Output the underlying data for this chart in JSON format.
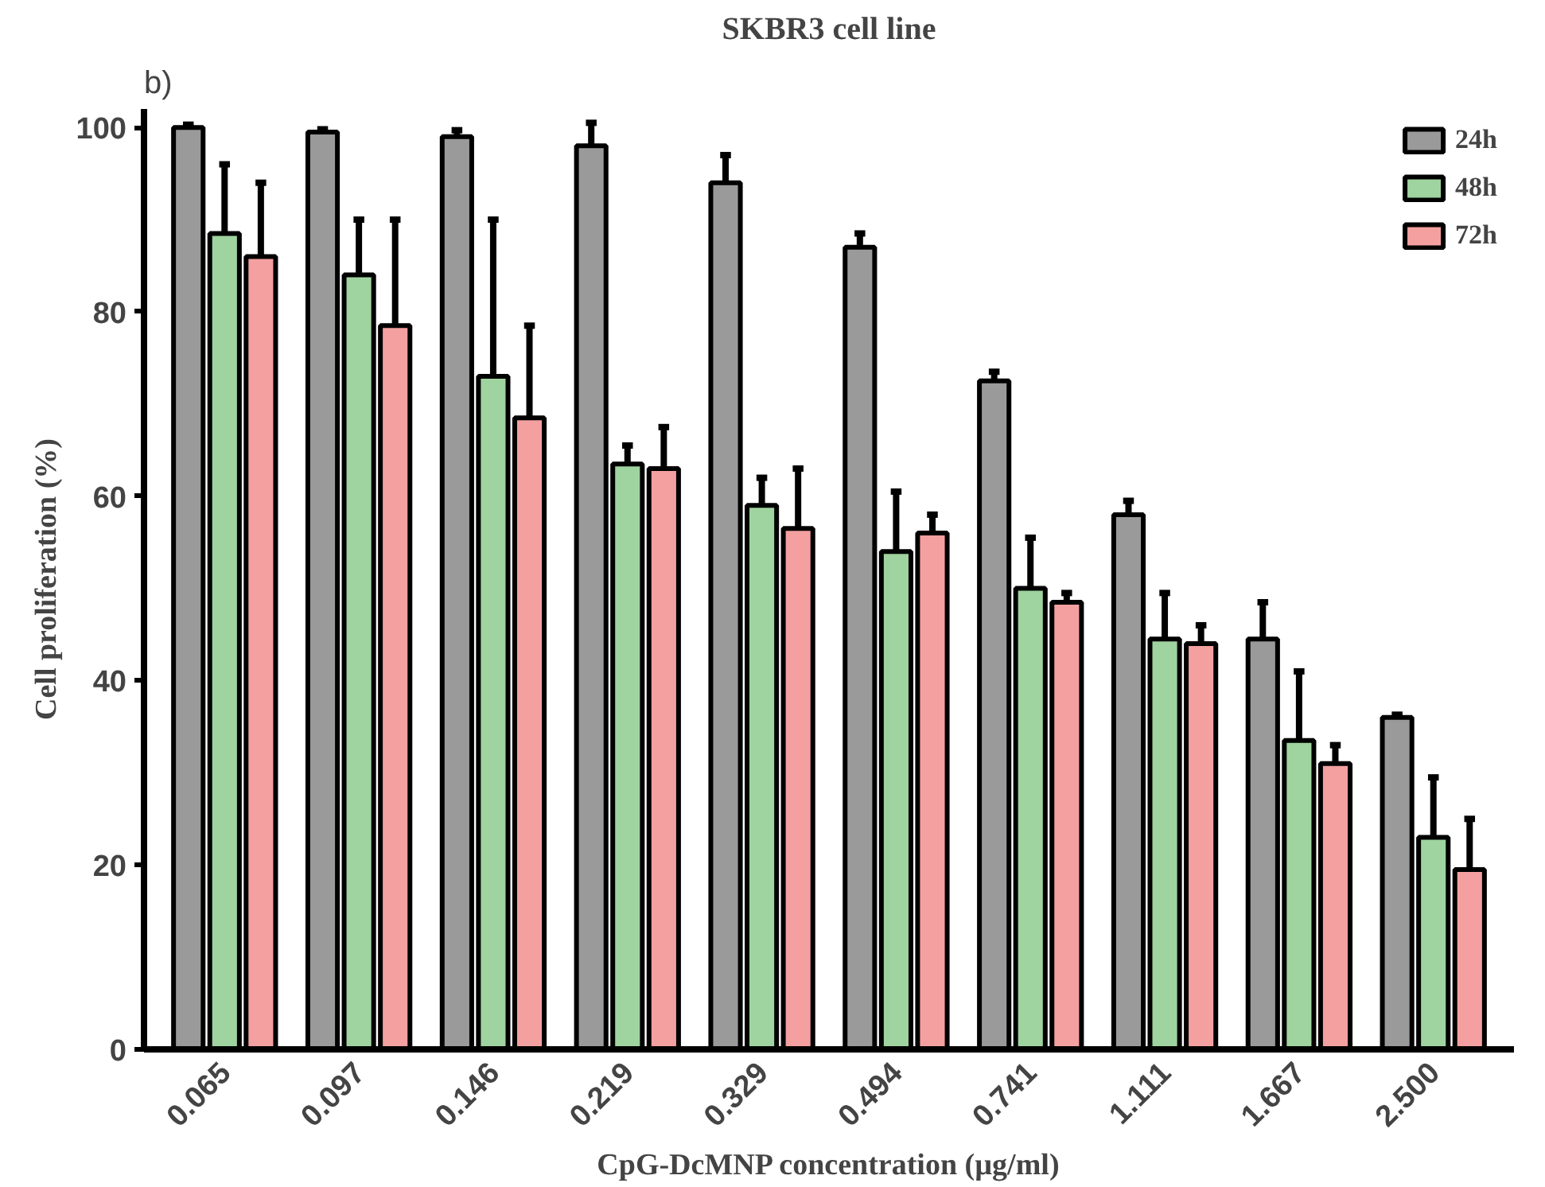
{
  "chart_data": {
    "type": "bar",
    "title": "SKBR3 cell line",
    "xlabel": "CpG-DcMNP concentration (µg/ml)",
    "ylabel": "Cell proliferation (%)",
    "annotations": [
      "b)"
    ],
    "categories": [
      "0.065",
      "0.097",
      "0.146",
      "0.219",
      "0.329",
      "0.494",
      "0.741",
      "1.111",
      "1.667",
      "2.500"
    ],
    "series": [
      {
        "name": "24h",
        "color": "#9a9a9a",
        "values": [
          100,
          99.5,
          99,
          98,
          94,
          87,
          72.5,
          58,
          44.5,
          36
        ],
        "errors": [
          [
            100,
            100.3
          ],
          [
            99.5,
            99.8
          ],
          [
            99,
            99.7
          ],
          [
            98,
            100.5
          ],
          [
            94,
            97
          ],
          [
            87,
            88.5
          ],
          [
            72.5,
            73.5
          ],
          [
            58,
            59.5
          ],
          [
            44.5,
            48.5
          ],
          [
            36,
            36.3
          ]
        ]
      },
      {
        "name": "48h",
        "color": "#9fd39f",
        "values": [
          88.5,
          84,
          73,
          63.5,
          59,
          54,
          50,
          44.5,
          33.5,
          23
        ],
        "errors": [
          [
            88.5,
            96
          ],
          [
            84,
            90
          ],
          [
            73,
            90
          ],
          [
            63.5,
            65.5
          ],
          [
            59,
            62
          ],
          [
            54,
            60.5
          ],
          [
            50,
            55.5
          ],
          [
            44.5,
            49.5
          ],
          [
            33.5,
            41
          ],
          [
            23,
            29.5
          ]
        ]
      },
      {
        "name": "72h",
        "color": "#f4a0a0",
        "values": [
          86,
          78.5,
          68.5,
          63,
          56.5,
          56,
          48.5,
          44,
          31,
          19.5
        ],
        "errors": [
          [
            86,
            94
          ],
          [
            78.5,
            90
          ],
          [
            68.5,
            78.5
          ],
          [
            63,
            67.5
          ],
          [
            56.5,
            63
          ],
          [
            56,
            58
          ],
          [
            48.5,
            49.5
          ],
          [
            44,
            46
          ],
          [
            31,
            33
          ],
          [
            19.5,
            25
          ]
        ]
      }
    ],
    "ylim": [
      0,
      102
    ],
    "yticks": [
      0,
      20,
      40,
      60,
      80,
      100
    ],
    "grid": false,
    "legend": "top right"
  }
}
